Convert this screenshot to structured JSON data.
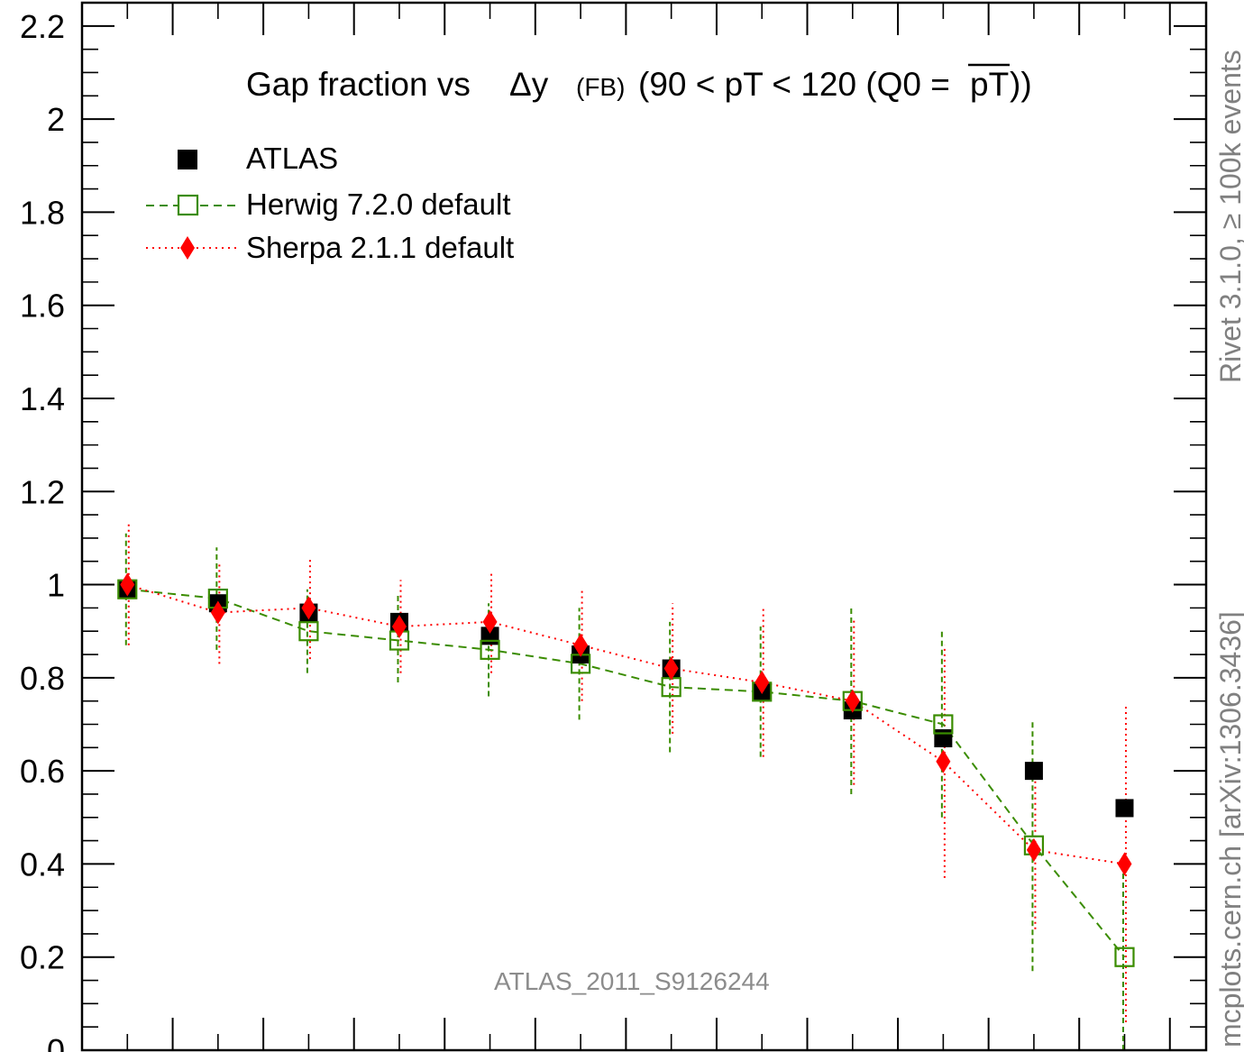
{
  "chart_data": {
    "type": "scatter",
    "title_main": "Gap fraction vs",
    "title_delta": "Δy",
    "title_fb": "(FB)",
    "title_range": "(90 < pT < 120 (Q0 =",
    "title_pt": "pT",
    "title_close": "))",
    "xlabel": "",
    "ylabel": "",
    "xlim": [
      0,
      12.4
    ],
    "ylim": [
      0,
      2.25
    ],
    "yticks": [
      "0",
      "0.2",
      "0.4",
      "0.6",
      "0.8",
      "1",
      "1.2",
      "1.4",
      "1.6",
      "1.8",
      "2",
      "2.2"
    ],
    "ytick_values": [
      0,
      0.2,
      0.4,
      0.6,
      0.8,
      1.0,
      1.2,
      1.4,
      1.6,
      1.8,
      2.0,
      2.2
    ],
    "x": [
      0.5,
      1.5,
      2.5,
      3.5,
      4.5,
      5.5,
      6.5,
      7.5,
      8.5,
      9.5,
      10.5,
      11.5
    ],
    "legend_position": "top-left",
    "series": [
      {
        "name": "ATLAS",
        "color": "#000000",
        "marker": "filled-square",
        "values": [
          0.99,
          0.96,
          0.94,
          0.92,
          0.89,
          0.85,
          0.82,
          0.77,
          0.73,
          0.67,
          0.6,
          0.52
        ],
        "err": [
          0,
          0,
          0,
          0,
          0,
          0,
          0,
          0,
          0,
          0,
          0,
          0
        ]
      },
      {
        "name": "Herwig 7.2.0 default",
        "color": "#3a8c00",
        "marker": "open-square",
        "line": "dashed",
        "values": [
          0.99,
          0.97,
          0.9,
          0.88,
          0.86,
          0.83,
          0.78,
          0.77,
          0.75,
          0.7,
          0.44,
          0.2
        ],
        "err_low": [
          0.12,
          0.11,
          0.09,
          0.09,
          0.1,
          0.12,
          0.14,
          0.14,
          0.2,
          0.2,
          0.27,
          0.2
        ],
        "err_high": [
          0.12,
          0.11,
          0.09,
          0.1,
          0.1,
          0.12,
          0.14,
          0.14,
          0.2,
          0.2,
          0.27,
          0.2
        ]
      },
      {
        "name": "Sherpa 2.1.1 default",
        "color": "#ff0000",
        "marker": "filled-diamond",
        "line": "dotted",
        "values": [
          1.0,
          0.94,
          0.95,
          0.91,
          0.92,
          0.87,
          0.82,
          0.79,
          0.75,
          0.62,
          0.43,
          0.4
        ],
        "err_low": [
          0.13,
          0.11,
          0.11,
          0.1,
          0.11,
          0.12,
          0.14,
          0.16,
          0.18,
          0.25,
          0.17,
          0.34
        ],
        "err_high": [
          0.13,
          0.11,
          0.11,
          0.1,
          0.11,
          0.12,
          0.14,
          0.16,
          0.18,
          0.25,
          0.17,
          0.34
        ]
      }
    ]
  },
  "annotations": {
    "analysis_id": "ATLAS_2011_S9126244",
    "rivet_label": "Rivet 3.1.0, ≥ 100k events",
    "mcplots_label": "mcplots.cern.ch [arXiv:1306.3436]"
  }
}
